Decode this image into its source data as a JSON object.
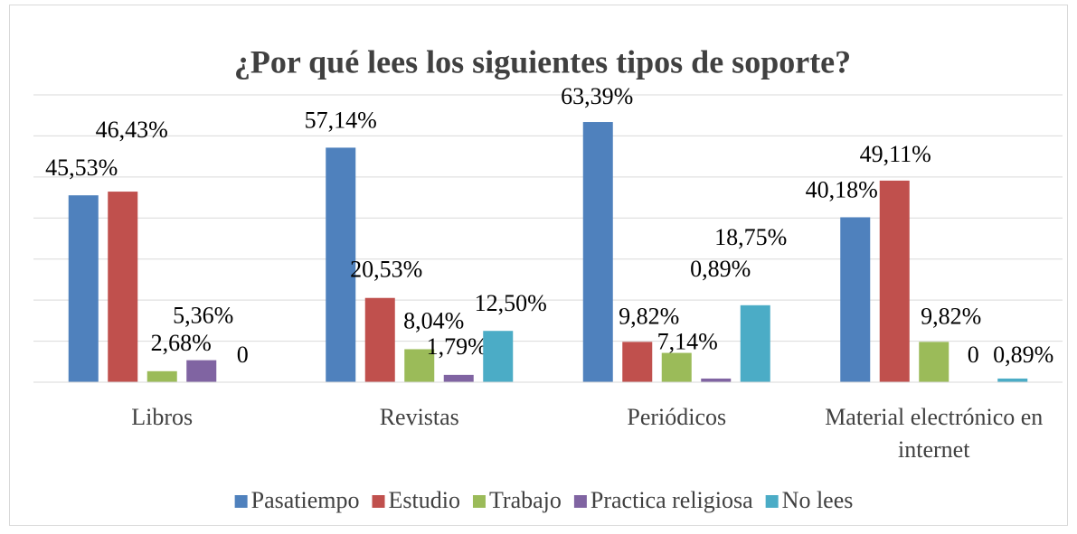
{
  "chart_data": {
    "type": "bar",
    "title": "¿Por qué lees los siguientes tipos de soporte?",
    "categories": [
      "Libros",
      "Revistas",
      "Periódicos",
      "Material electrónico en internet"
    ],
    "series": [
      {
        "name": "Pasatiempo",
        "color": "#4f81bd",
        "values": [
          45.53,
          57.14,
          63.39,
          40.18
        ],
        "value_labels": [
          "45,53%",
          "57,14%",
          "63,39%",
          "40,18%"
        ]
      },
      {
        "name": "Estudio",
        "color": "#c0504d",
        "values": [
          46.43,
          20.53,
          9.82,
          49.11
        ],
        "value_labels": [
          "46,43%",
          "20,53%",
          "9,82%",
          "49,11%"
        ]
      },
      {
        "name": "Trabajo",
        "color": "#9bbb59",
        "values": [
          2.68,
          8.04,
          7.14,
          9.82
        ],
        "value_labels": [
          "2,68%",
          "8,04%",
          "7,14%",
          "9,82%"
        ]
      },
      {
        "name": "Practica religiosa",
        "color": "#8064a2",
        "values": [
          5.36,
          1.79,
          0.89,
          0
        ],
        "value_labels": [
          "5,36%",
          "1,79%",
          "0,89%",
          "0"
        ]
      },
      {
        "name": "No lees",
        "color": "#4bacc6",
        "values": [
          0,
          12.5,
          18.75,
          0.89
        ],
        "value_labels": [
          "0",
          "12,50%",
          "18,75%",
          "0,89%"
        ]
      }
    ],
    "ylim": [
      0,
      70
    ],
    "yticks": [
      0,
      10,
      20,
      30,
      40,
      50,
      60,
      70
    ],
    "grid": true,
    "legend": "bottom"
  }
}
